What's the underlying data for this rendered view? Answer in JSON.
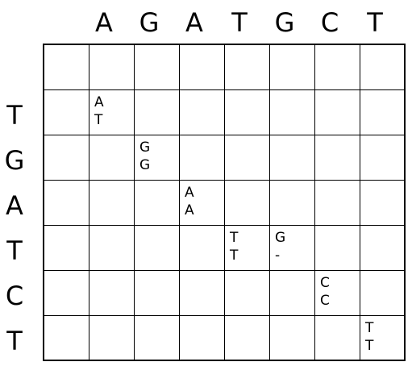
{
  "columns": [
    "A",
    "G",
    "A",
    "T",
    "G",
    "C",
    "T"
  ],
  "rows": [
    "T",
    "G",
    "A",
    "T",
    "C",
    "T"
  ],
  "alignment": [
    {
      "row": 1,
      "col": 1,
      "top": "A",
      "bottom": "T"
    },
    {
      "row": 2,
      "col": 2,
      "top": "G",
      "bottom": "G"
    },
    {
      "row": 3,
      "col": 3,
      "top": "A",
      "bottom": "A"
    },
    {
      "row": 4,
      "col": 4,
      "top": "T",
      "bottom": "T"
    },
    {
      "row": 4,
      "col": 5,
      "top": "G",
      "bottom": "-"
    },
    {
      "row": 5,
      "col": 6,
      "top": "C",
      "bottom": "C"
    },
    {
      "row": 6,
      "col": 7,
      "top": "T",
      "bottom": "T"
    }
  ]
}
